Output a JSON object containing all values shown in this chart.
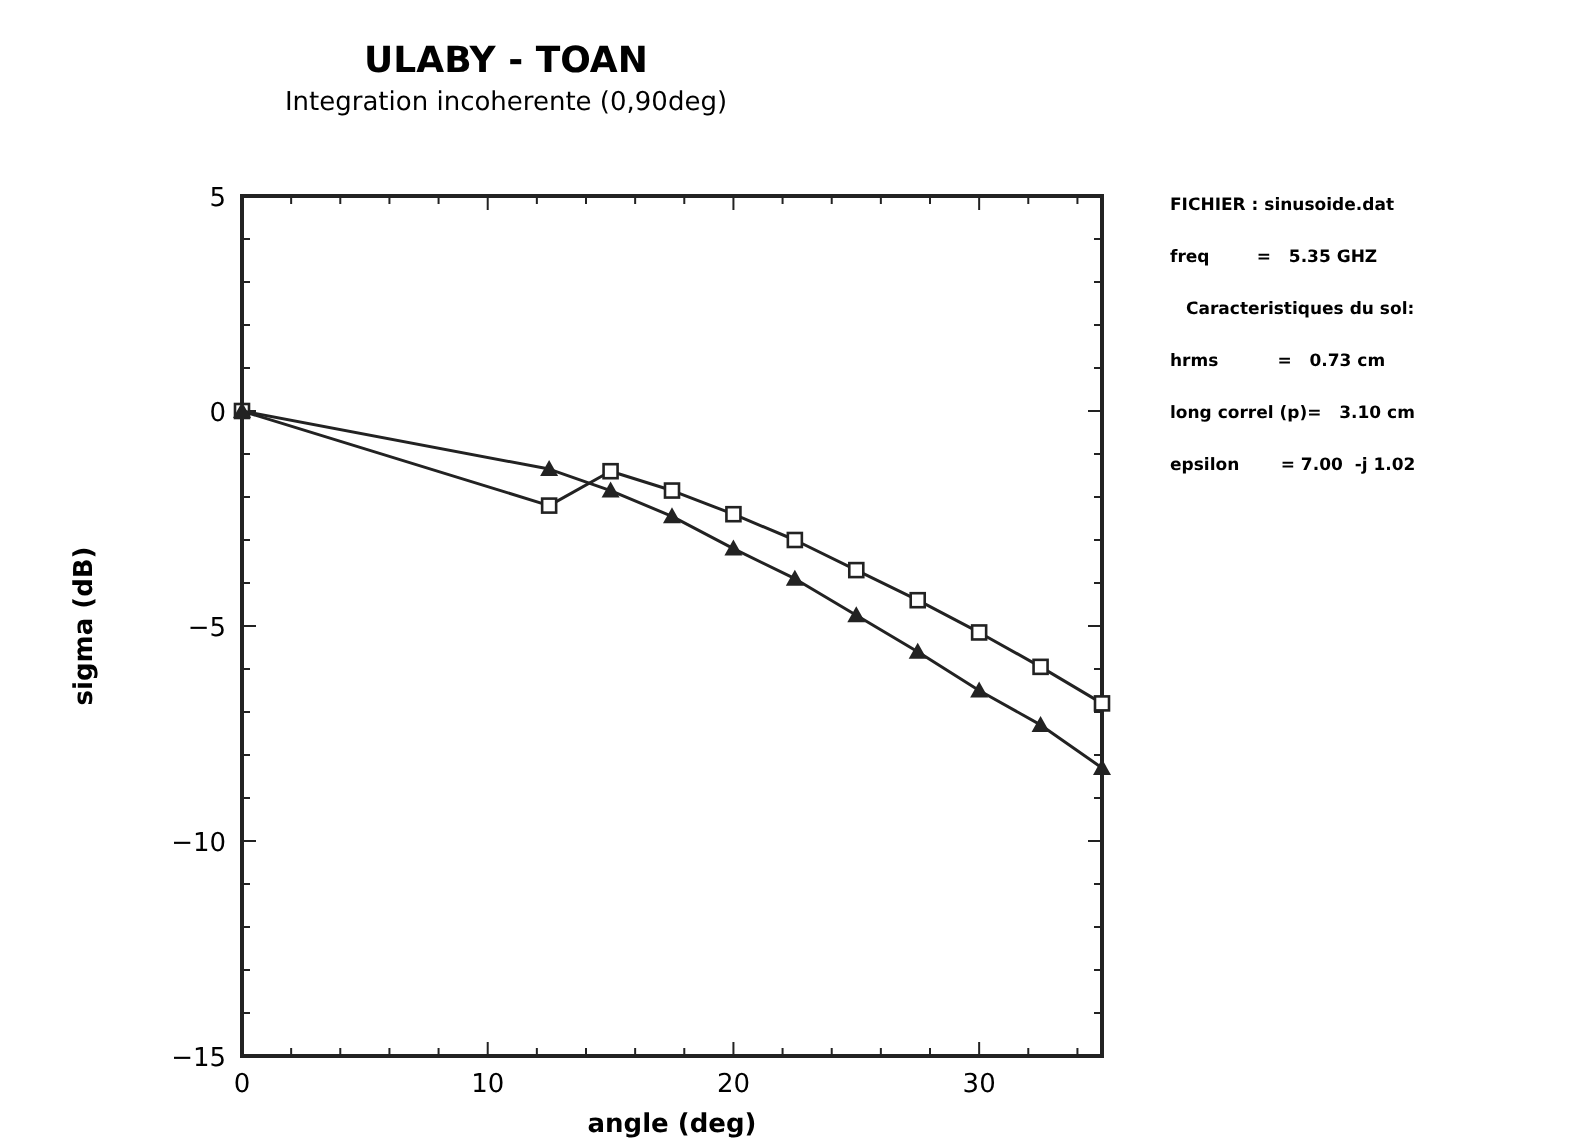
{
  "chart_data": {
    "type": "line",
    "title": "ULABY - TOAN",
    "subtitle": "Integration incoherente (0,90deg)",
    "xlabel": "angle (deg)",
    "ylabel": "sigma (dB)",
    "xlim": [
      0,
      35
    ],
    "ylim": [
      -15,
      5
    ],
    "xticks": [
      0,
      {
        "value": 2,
        "label": null
      },
      {
        "value": 4,
        "label": null
      },
      {
        "value": 6,
        "label": null
      },
      {
        "value": 8,
        "label": null
      },
      10,
      {
        "value": 12,
        "label": null
      },
      {
        "value": 14,
        "label": null
      },
      {
        "value": 16,
        "label": null
      },
      {
        "value": 18,
        "label": null
      },
      20,
      {
        "value": 22,
        "label": null
      },
      {
        "value": 24,
        "label": null
      },
      {
        "value": 26,
        "label": null
      },
      {
        "value": 28,
        "label": null
      },
      30,
      {
        "value": 32,
        "label": null
      },
      {
        "value": 34,
        "label": null
      }
    ],
    "yticks": [
      -15,
      {
        "value": -14,
        "label": null
      },
      {
        "value": -13,
        "label": null
      },
      {
        "value": -12,
        "label": null
      },
      {
        "value": -11,
        "label": null
      },
      -10,
      {
        "value": -9,
        "label": null
      },
      {
        "value": -8,
        "label": null
      },
      {
        "value": -7,
        "label": null
      },
      {
        "value": -6,
        "label": null
      },
      -5,
      {
        "value": -4,
        "label": null
      },
      {
        "value": -3,
        "label": null
      },
      {
        "value": -2,
        "label": null
      },
      {
        "value": -1,
        "label": null
      },
      0,
      {
        "value": 1,
        "label": null
      },
      {
        "value": 2,
        "label": null
      },
      {
        "value": 3,
        "label": null
      },
      {
        "value": 4,
        "label": null
      },
      5
    ],
    "x": [
      0,
      12.5,
      15,
      17.5,
      20,
      22.5,
      25,
      27.5,
      30,
      32.5,
      35
    ],
    "series": [
      {
        "color": "#222222",
        "marker": "square",
        "values": [
          0,
          -2.2,
          -1.4,
          -1.85,
          -2.4,
          -3.0,
          -3.7,
          -4.4,
          -5.15,
          -5.95,
          -6.8
        ]
      },
      {
        "color": "#222222",
        "marker": "triangle",
        "values": [
          0,
          -1.35,
          -1.85,
          -2.45,
          -3.2,
          -3.9,
          -4.75,
          -5.6,
          -6.5,
          -7.3,
          -8.3
        ]
      }
    ],
    "line_style": "solid",
    "annotations": [
      "FICHIER : sinusoide.dat",
      "freq        =   5.35 GHZ",
      "Caracteristiques du sol:",
      "hrms          =   0.73 cm",
      "long correl (p)=   3.10 cm",
      "epsilon       = 7.00  -j 1.02"
    ]
  }
}
